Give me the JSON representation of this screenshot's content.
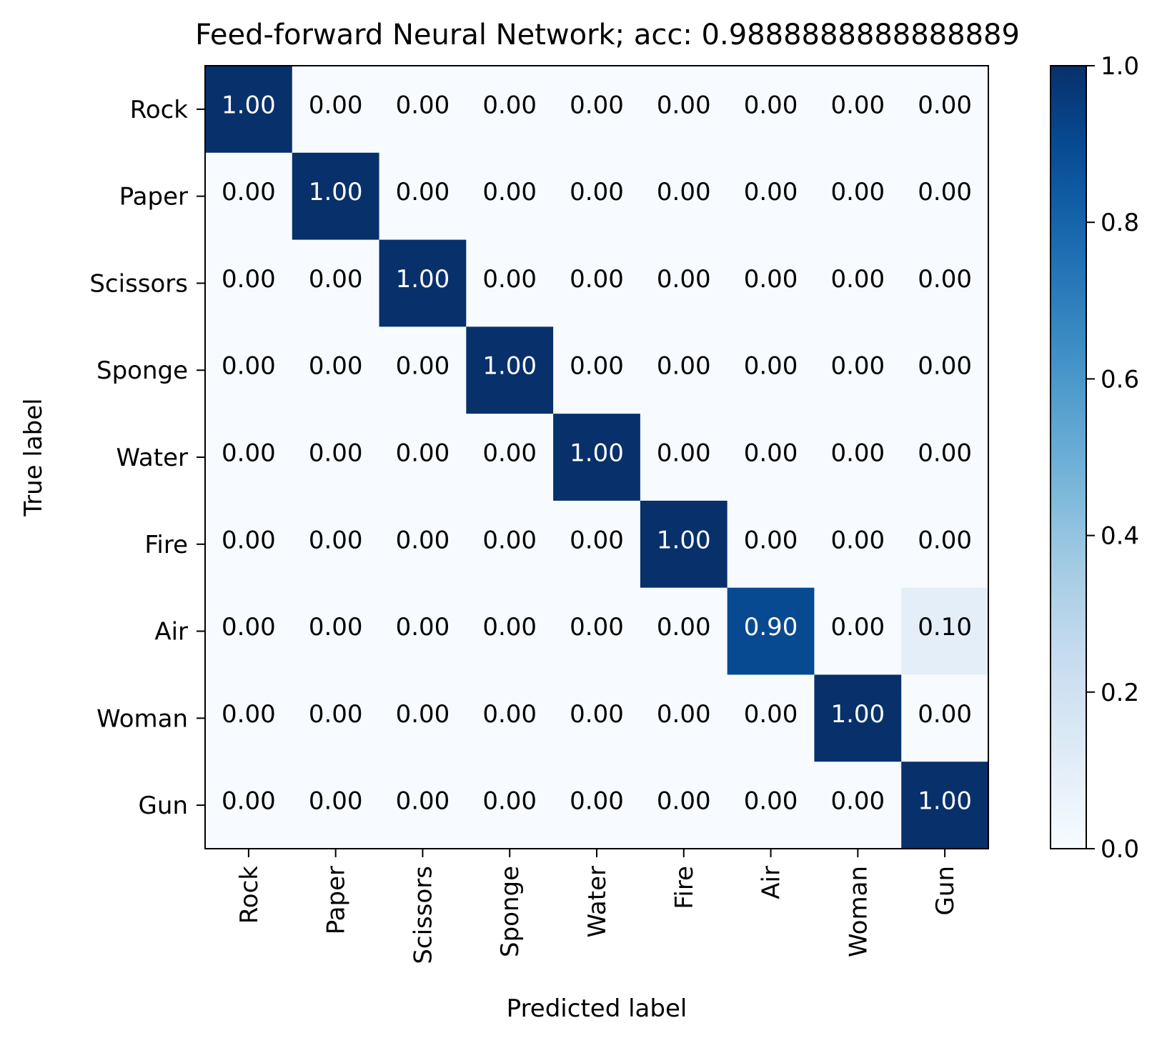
{
  "chart_data": {
    "type": "heatmap",
    "title": "Feed-forward Neural Network; acc: 0.9888888888888889",
    "xlabel": "Predicted label",
    "ylabel": "True label",
    "x_categories": [
      "Rock",
      "Paper",
      "Scissors",
      "Sponge",
      "Water",
      "Fire",
      "Air",
      "Woman",
      "Gun"
    ],
    "y_categories": [
      "Rock",
      "Paper",
      "Scissors",
      "Sponge",
      "Water",
      "Fire",
      "Air",
      "Woman",
      "Gun"
    ],
    "values": [
      [
        1.0,
        0.0,
        0.0,
        0.0,
        0.0,
        0.0,
        0.0,
        0.0,
        0.0
      ],
      [
        0.0,
        1.0,
        0.0,
        0.0,
        0.0,
        0.0,
        0.0,
        0.0,
        0.0
      ],
      [
        0.0,
        0.0,
        1.0,
        0.0,
        0.0,
        0.0,
        0.0,
        0.0,
        0.0
      ],
      [
        0.0,
        0.0,
        0.0,
        1.0,
        0.0,
        0.0,
        0.0,
        0.0,
        0.0
      ],
      [
        0.0,
        0.0,
        0.0,
        0.0,
        1.0,
        0.0,
        0.0,
        0.0,
        0.0
      ],
      [
        0.0,
        0.0,
        0.0,
        0.0,
        0.0,
        1.0,
        0.0,
        0.0,
        0.0
      ],
      [
        0.0,
        0.0,
        0.0,
        0.0,
        0.0,
        0.0,
        0.9,
        0.0,
        0.1
      ],
      [
        0.0,
        0.0,
        0.0,
        0.0,
        0.0,
        0.0,
        0.0,
        1.0,
        0.0
      ],
      [
        0.0,
        0.0,
        0.0,
        0.0,
        0.0,
        0.0,
        0.0,
        0.0,
        1.0
      ]
    ],
    "value_format": "0.00",
    "colorbar": {
      "range": [
        0.0,
        1.0
      ],
      "ticks": [
        "0.0",
        "0.2",
        "0.4",
        "0.6",
        "0.8",
        "1.0"
      ],
      "colormap": "Blues"
    },
    "grid": false
  }
}
